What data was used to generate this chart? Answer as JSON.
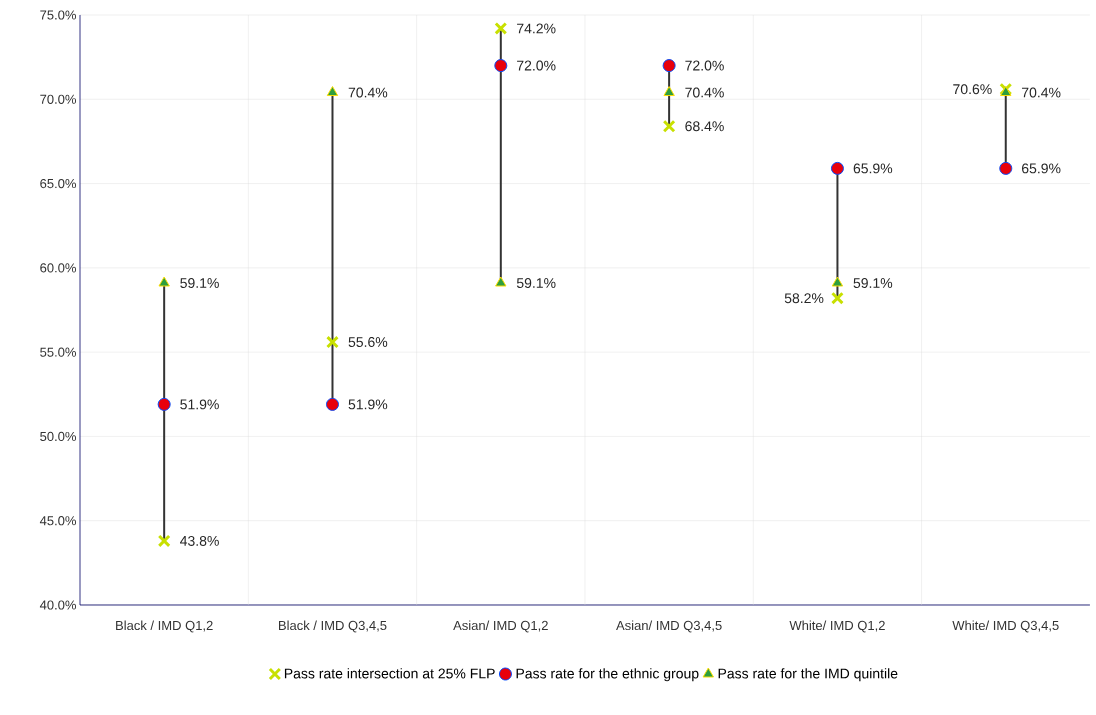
{
  "chart_data": {
    "type": "scatter",
    "categories": [
      "Black / IMD Q1,2",
      "Black / IMD Q3,4,5",
      "Asian/ IMD Q1,2",
      "Asian/ IMD Q3,4,5",
      "White/ IMD Q1,2",
      "White/ IMD Q3,4,5"
    ],
    "series": [
      {
        "name": "Pass rate intersection at 25% FLP",
        "color": "#c8e000",
        "marker": "cross",
        "values": [
          43.8,
          55.6,
          74.2,
          68.4,
          58.2,
          70.6
        ],
        "value_labels": [
          "43.8%",
          "55.6%",
          "74.2%",
          "68.4%",
          "58.2%",
          "70.6%"
        ]
      },
      {
        "name": "Pass rate for the ethnic group",
        "color": "#e8000b",
        "marker": "circle",
        "values": [
          51.9,
          51.9,
          72.0,
          72.0,
          65.9,
          65.9
        ],
        "value_labels": [
          "51.9%",
          "51.9%",
          "72.0%",
          "72.0%",
          "65.9%",
          "65.9%"
        ]
      },
      {
        "name": "Pass rate for the IMD quintile",
        "color": "#2e9e3e",
        "marker": "triangle",
        "values": [
          59.1,
          70.4,
          59.1,
          70.4,
          59.1,
          70.4
        ],
        "value_labels": [
          "59.1%",
          "70.4%",
          "59.1%",
          "70.4%",
          "59.1%",
          "70.4%"
        ]
      }
    ],
    "ylim": [
      40,
      75
    ],
    "yticks": [
      {
        "value": 40,
        "label": "40.0%"
      },
      {
        "value": 45,
        "label": "45.0%"
      },
      {
        "value": 50,
        "label": "50.0%"
      },
      {
        "value": 55,
        "label": "55.0%"
      },
      {
        "value": 60,
        "label": "60.0%"
      },
      {
        "value": 65,
        "label": "65.0%"
      },
      {
        "value": 70,
        "label": "70.0%"
      },
      {
        "value": 75,
        "label": "75.0%"
      }
    ],
    "grid": true,
    "legend": "bottom",
    "data_labels": true
  }
}
